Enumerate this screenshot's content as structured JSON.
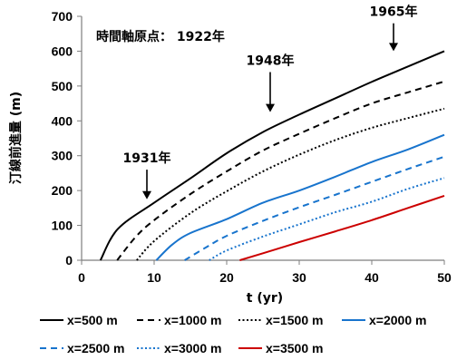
{
  "chart_data": {
    "type": "line",
    "xlabel": "t (yr)",
    "ylabel": "汀線前進量 (m)",
    "xlim": [
      0,
      50
    ],
    "ylim": [
      0,
      700
    ],
    "xticks": [
      0,
      10,
      20,
      30,
      40,
      50
    ],
    "yticks": [
      0,
      100,
      200,
      300,
      400,
      500,
      600,
      700
    ],
    "grid": false,
    "legend_position": "bottom",
    "series": [
      {
        "name": "x=500 m",
        "color": "#000000",
        "dash": "solid",
        "points": [
          [
            2.6,
            0
          ],
          [
            5,
            90
          ],
          [
            10,
            165
          ],
          [
            15,
            235
          ],
          [
            20,
            307
          ],
          [
            25,
            368
          ],
          [
            30,
            418
          ],
          [
            35,
            465
          ],
          [
            40,
            512
          ],
          [
            45,
            556
          ],
          [
            50,
            600
          ]
        ]
      },
      {
        "name": "x=1000 m",
        "color": "#000000",
        "dash": "dashed",
        "points": [
          [
            4.9,
            0
          ],
          [
            7.5,
            68
          ],
          [
            10,
            115
          ],
          [
            15,
            190
          ],
          [
            20,
            255
          ],
          [
            25,
            315
          ],
          [
            30,
            363
          ],
          [
            35,
            408
          ],
          [
            40,
            450
          ],
          [
            45,
            482
          ],
          [
            50,
            513
          ]
        ]
      },
      {
        "name": "x=1500 m",
        "color": "#000000",
        "dash": "dotted",
        "points": [
          [
            7.6,
            0
          ],
          [
            10,
            55
          ],
          [
            15,
            135
          ],
          [
            20,
            198
          ],
          [
            25,
            255
          ],
          [
            30,
            303
          ],
          [
            35,
            345
          ],
          [
            40,
            380
          ],
          [
            45,
            408
          ],
          [
            50,
            435
          ]
        ]
      },
      {
        "name": "x=2000 m",
        "color": "#1874CD",
        "dash": "solid",
        "points": [
          [
            10.3,
            0
          ],
          [
            12.5,
            45
          ],
          [
            15,
            78
          ],
          [
            20,
            118
          ],
          [
            25,
            165
          ],
          [
            30,
            200
          ],
          [
            35,
            240
          ],
          [
            40,
            282
          ],
          [
            45,
            318
          ],
          [
            50,
            360
          ]
        ]
      },
      {
        "name": "x=2500 m",
        "color": "#1874CD",
        "dash": "dashed",
        "points": [
          [
            14.2,
            0
          ],
          [
            17,
            35
          ],
          [
            20,
            70
          ],
          [
            25,
            113
          ],
          [
            30,
            152
          ],
          [
            35,
            188
          ],
          [
            40,
            225
          ],
          [
            45,
            262
          ],
          [
            50,
            297
          ]
        ]
      },
      {
        "name": "x=3000 m",
        "color": "#1874CD",
        "dash": "dotted",
        "points": [
          [
            17.6,
            0
          ],
          [
            20,
            28
          ],
          [
            25,
            68
          ],
          [
            30,
            103
          ],
          [
            35,
            138
          ],
          [
            40,
            168
          ],
          [
            45,
            205
          ],
          [
            50,
            236
          ]
        ]
      },
      {
        "name": "x=3500 m",
        "color": "#CC0000",
        "dash": "solid",
        "points": [
          [
            21.8,
            0
          ],
          [
            25,
            20
          ],
          [
            30,
            52
          ],
          [
            35,
            83
          ],
          [
            40,
            115
          ],
          [
            45,
            150
          ],
          [
            50,
            185
          ]
        ]
      }
    ],
    "annotations": {
      "origin_note": "時間軸原点： 1922年",
      "arrows": [
        {
          "label": "1931年",
          "x": 9,
          "y_tip": 175,
          "y_tail": 260
        },
        {
          "label": "1948年",
          "x": 26,
          "y_tip": 425,
          "y_tail": 540
        },
        {
          "label": "1965年",
          "x": 43,
          "y_tip": 600,
          "y_tail": 680
        }
      ]
    }
  }
}
